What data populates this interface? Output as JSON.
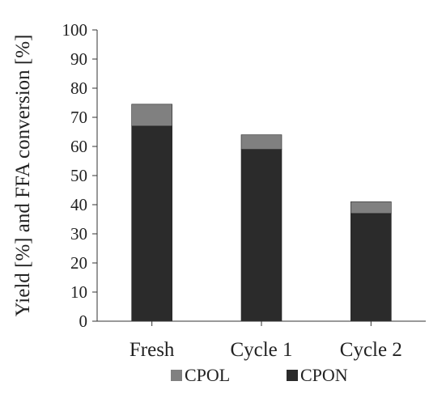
{
  "chart_data": {
    "type": "bar",
    "stacked": true,
    "categories": [
      "Fresh",
      "Cycle 1",
      "Cycle 2"
    ],
    "series": [
      {
        "name": "CPON",
        "values": [
          67,
          59,
          37
        ],
        "color": "#2b2b2b"
      },
      {
        "name": "CPOL",
        "values": [
          7.5,
          5,
          4
        ],
        "color": "#808080"
      }
    ],
    "legend_order": [
      "CPOL",
      "CPON"
    ],
    "ylabel": "Yield [%]  and  FFA conversion [%]",
    "xlabel": "",
    "ylim": [
      0,
      100
    ],
    "yticks": [
      0,
      10,
      20,
      30,
      40,
      50,
      60,
      70,
      80,
      90,
      100
    ],
    "grid": false,
    "legend_position": "bottom"
  }
}
